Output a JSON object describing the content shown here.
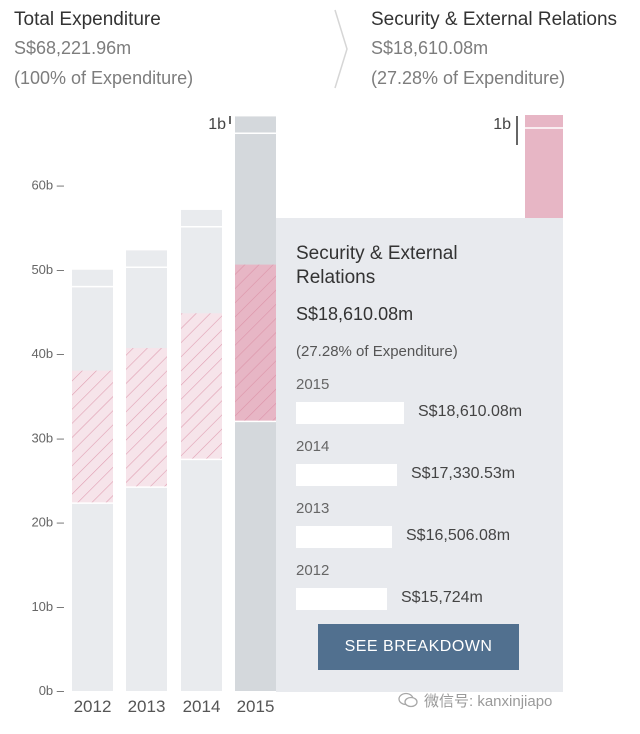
{
  "header": {
    "left_title": "Total Expenditure",
    "left_amount": "S$68,221.96m",
    "left_pct": "(100% of Expenditure)",
    "right_title": "Security & External Relations",
    "right_amount": "S$18,610.08m",
    "right_pct": "(27.28% of Expenditure)"
  },
  "chart_data": {
    "type": "bar",
    "categories": [
      "2012",
      "2013",
      "2014",
      "2015"
    ],
    "series": [
      {
        "name": "Total Expenditure",
        "values": [
          50.0,
          52.3,
          57.1,
          68.2
        ]
      },
      {
        "name": "Security & External Relations",
        "values": [
          15.724,
          16.50608,
          17.33053,
          18.61008
        ]
      }
    ],
    "segment_start": [
      22.3,
      24.2,
      27.5,
      32.0
    ],
    "yticks": [
      0,
      10,
      20,
      30,
      40,
      50,
      60
    ],
    "ytick_labels": [
      "0b –",
      "10b –",
      "20b –",
      "30b –",
      "40b –",
      "50b –",
      "60b –"
    ],
    "ylim": [
      0,
      68.2
    ],
    "scale_label": "1b",
    "right_bar_value": 18.61008,
    "xlabel": "",
    "ylabel": ""
  },
  "tooltip": {
    "title": "Security & External Relations",
    "amount": "S$18,610.08m",
    "pct": "(27.28% of Expenditure)",
    "rows": [
      {
        "year": "2015",
        "value": "S$18,610.08m",
        "fraction": 1.0
      },
      {
        "year": "2014",
        "value": "S$17,330.53m",
        "fraction": 0.931
      },
      {
        "year": "2013",
        "value": "S$16,506.08m",
        "fraction": 0.887
      },
      {
        "year": "2012",
        "value": "S$15,724m",
        "fraction": 0.845
      }
    ],
    "button": "SEE BREAKDOWN"
  },
  "watermark": "微信号: kanxinjiapo",
  "colors": {
    "bar_light": "#e9ebee",
    "bar_selected": "#d4d8dc",
    "seg_light": "#f6e4ea",
    "seg_selected": "#e7b6c5",
    "hatch": "#d8879f",
    "button": "#51708f",
    "panel": "#e8eaee"
  }
}
